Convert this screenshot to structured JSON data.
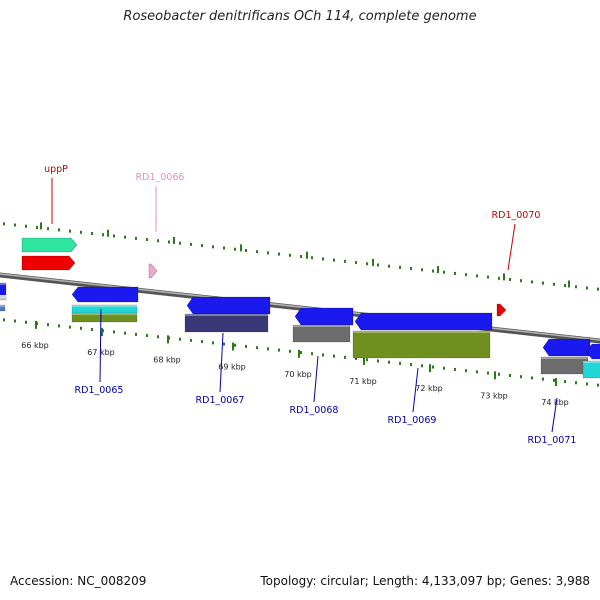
{
  "title": "Roseobacter denitrificans OCh 114, complete genome",
  "accession": "Accession: NC_008209",
  "stats": "Topology: circular; Length: 4,133,097 bp; Genes: 3,988",
  "colors": {
    "backbone": "#8a8a8a",
    "tick": "#2a7a1a",
    "forward_label": "#cc0000",
    "pink_label": "#e58fbf",
    "reverse_label": "#0000aa",
    "gene_blue": "#1a1aee",
    "gene_red": "#ee0000",
    "gene_green": "#2fe3a0",
    "gene_pink": "#f4a6cf",
    "cog_cyan": "#22d6d6",
    "cog_olive": "#6f8f1f",
    "cog_navy": "#3b3878",
    "cog_gray": "#6d6d6d"
  },
  "tick_labels": [
    "66 kbp",
    "67 kbp",
    "68 kbp",
    "69 kbp",
    "70 kbp",
    "71 kbp",
    "72 kbp",
    "73 kbp",
    "74 kbp"
  ],
  "genes_forward": [
    {
      "label": "uppP",
      "label_color": "forward_label",
      "icon": "forward-gene-arrow"
    },
    {
      "label": "RD1_0066",
      "label_color": "pink_label",
      "icon": "forward-gene-arrow"
    },
    {
      "label": "RD1_0070",
      "label_color": "forward_label",
      "icon": "forward-gene-arrow"
    }
  ],
  "genes_reverse": [
    {
      "label": "RD1_0065",
      "icon": "reverse-gene-arrow"
    },
    {
      "label": "RD1_0067",
      "icon": "reverse-gene-arrow"
    },
    {
      "label": "RD1_0068",
      "icon": "reverse-gene-arrow"
    },
    {
      "label": "RD1_0069",
      "icon": "reverse-gene-arrow"
    },
    {
      "label": "RD1_0071",
      "icon": "reverse-gene-arrow"
    }
  ]
}
